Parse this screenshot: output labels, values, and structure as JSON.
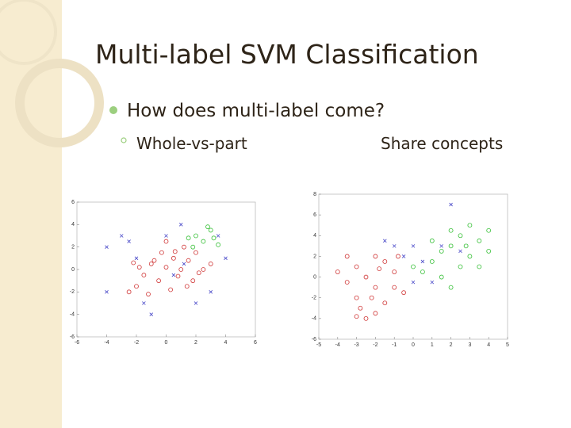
{
  "title": "Multi-label SVM Classification",
  "bullets": [
    {
      "text": "How does multi-label come?",
      "sub": [
        "Whole-vs-part",
        "Share concepts"
      ]
    }
  ],
  "chart_data": [
    {
      "type": "scatter",
      "xlim": [
        -6,
        6
      ],
      "ylim": [
        -6,
        6
      ],
      "xticks": [
        -6,
        -4,
        -2,
        0,
        2,
        4,
        6
      ],
      "yticks": [
        -6,
        -4,
        -2,
        0,
        2,
        4,
        6
      ],
      "series": [
        {
          "color": "#d03838",
          "marker": "o",
          "x": [
            -1.5,
            -1,
            -0.5,
            0,
            0.5,
            1,
            1.5,
            -2,
            -1.8,
            0.8,
            2,
            1.2,
            -0.3,
            0.3,
            2.5,
            -2.5,
            1.8,
            0,
            -1.2,
            2.2,
            0.6,
            -0.8,
            1.4,
            -2.2,
            3
          ],
          "values": [
            -0.5,
            0.5,
            -1,
            0.2,
            1,
            0,
            0.8,
            -1.5,
            0.2,
            -0.6,
            1.5,
            2,
            1.5,
            -1.8,
            0,
            -2,
            -1,
            2.5,
            -2.2,
            -0.3,
            1.6,
            0.8,
            -1.5,
            0.6,
            0.5
          ]
        },
        {
          "color": "#38c038",
          "marker": "o",
          "x": [
            2,
            2.5,
            3,
            1.5,
            3.5,
            2.8,
            1.8,
            3.2
          ],
          "values": [
            3,
            2.5,
            3.5,
            2.8,
            2.2,
            3.8,
            2,
            2.8
          ]
        },
        {
          "color": "#4848c8",
          "marker": "x",
          "x": [
            -3,
            -4,
            -2,
            1,
            0,
            3,
            -4,
            2,
            -1,
            4,
            1.2,
            -1.5,
            0.5,
            3.5,
            -2.5
          ],
          "values": [
            3,
            2,
            1,
            4,
            3,
            -2,
            -2,
            -3,
            -4,
            1,
            0.5,
            -3,
            -0.5,
            3,
            2.5
          ]
        }
      ]
    },
    {
      "type": "scatter",
      "xlim": [
        -5,
        5
      ],
      "ylim": [
        -6,
        8
      ],
      "xticks": [
        -5,
        -4,
        -3,
        -2,
        -1,
        0,
        1,
        2,
        3,
        4,
        5
      ],
      "yticks": [
        -6,
        -4,
        -2,
        0,
        2,
        4,
        6,
        8
      ],
      "series": [
        {
          "color": "#d03838",
          "marker": "o",
          "x": [
            -3,
            -2.5,
            -2,
            -3.5,
            -1.5,
            -2,
            -3,
            -2.8,
            -2,
            -1,
            -1.5,
            -4,
            -2.5,
            -1,
            -3.5,
            -0.5,
            -2.2,
            -1.8,
            -3,
            -0.8
          ],
          "values": [
            1,
            0,
            -1,
            -0.5,
            1.5,
            2,
            -2,
            -3,
            -3.5,
            -1,
            -2.5,
            0.5,
            -4,
            0.5,
            2,
            -1.5,
            -2,
            0.8,
            -3.8,
            2
          ]
        },
        {
          "color": "#38c038",
          "marker": "o",
          "x": [
            2,
            2.5,
            3,
            1.5,
            2,
            3.5,
            1,
            2.5,
            3,
            4,
            0.5,
            2,
            1.5,
            3.5,
            2.8,
            1,
            4,
            0
          ],
          "values": [
            3,
            4,
            2,
            2.5,
            4.5,
            3.5,
            1.5,
            1,
            5,
            2.5,
            0.5,
            -1,
            0,
            1,
            3,
            3.5,
            4.5,
            1
          ]
        },
        {
          "color": "#4848c8",
          "marker": "x",
          "x": [
            0,
            -0.5,
            0.5,
            1.5,
            -1,
            1,
            2.5,
            0,
            -1.5,
            2
          ],
          "values": [
            3,
            2,
            1.5,
            3,
            3,
            -0.5,
            2.5,
            -0.5,
            3.5,
            7
          ]
        }
      ]
    }
  ]
}
